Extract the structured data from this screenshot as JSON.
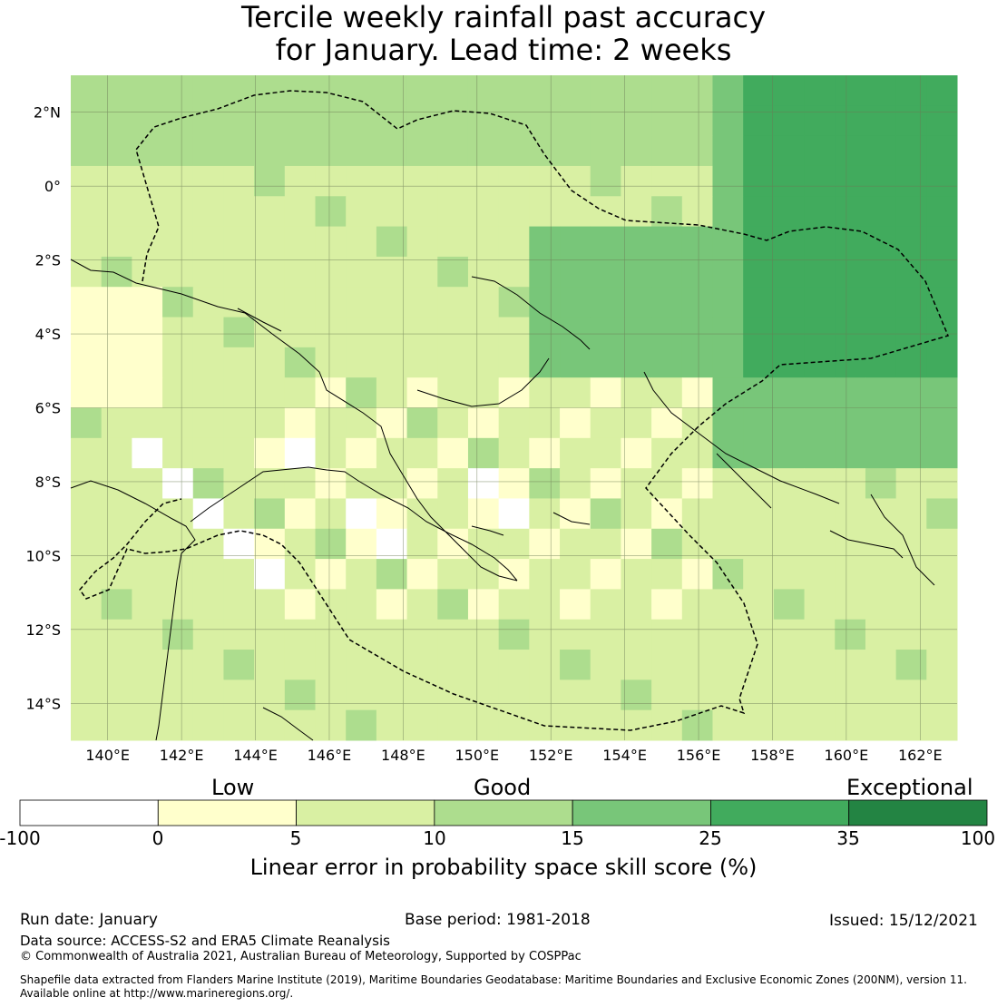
{
  "title": {
    "line1": "Tercile weekly rainfall past accuracy",
    "line2": "for January. Lead time: 2 weeks"
  },
  "map": {
    "lat_labels": [
      "2°N",
      "0°",
      "2°S",
      "4°S",
      "6°S",
      "8°S",
      "10°S",
      "12°S",
      "14°S"
    ],
    "lon_labels": [
      "140°E",
      "142°E",
      "144°E",
      "146°E",
      "148°E",
      "150°E",
      "152°E",
      "154°E",
      "156°E",
      "158°E",
      "160°E",
      "162°E"
    ],
    "lat_range": [
      -15,
      3
    ],
    "lon_range": [
      139,
      163
    ]
  },
  "colorbar": {
    "categories": [
      "Low",
      "Good",
      "Exceptional"
    ],
    "ticks": [
      "-100",
      "0",
      "5",
      "10",
      "15",
      "25",
      "35",
      "100"
    ],
    "colors": [
      "#ffffff",
      "#ffffcc",
      "#d9f0a3",
      "#addd8e",
      "#78c679",
      "#41ab5d",
      "#238443"
    ],
    "title": "Linear error in probability space skill score (%)"
  },
  "footer": {
    "run_date": "Run date: January",
    "base_period": "Base period: 1981-2018",
    "issued": "Issued: 15/12/2021",
    "data_source": "Data source: ACCESS-S2 and ERA5 Climate Reanalysis",
    "copyright": "© Commonwealth of Australia 2021, Australian Bureau of Meteorology, Supported by COSPPac",
    "shapefile1": "Shapefile data extracted from Flanders Marine Institute (2019), Maritime Boundaries Geodatabase: Maritime Boundaries and Exclusive Economic Zones (200NM), version 11.",
    "shapefile2": "Available online at http://www.marineregions.org/."
  }
}
